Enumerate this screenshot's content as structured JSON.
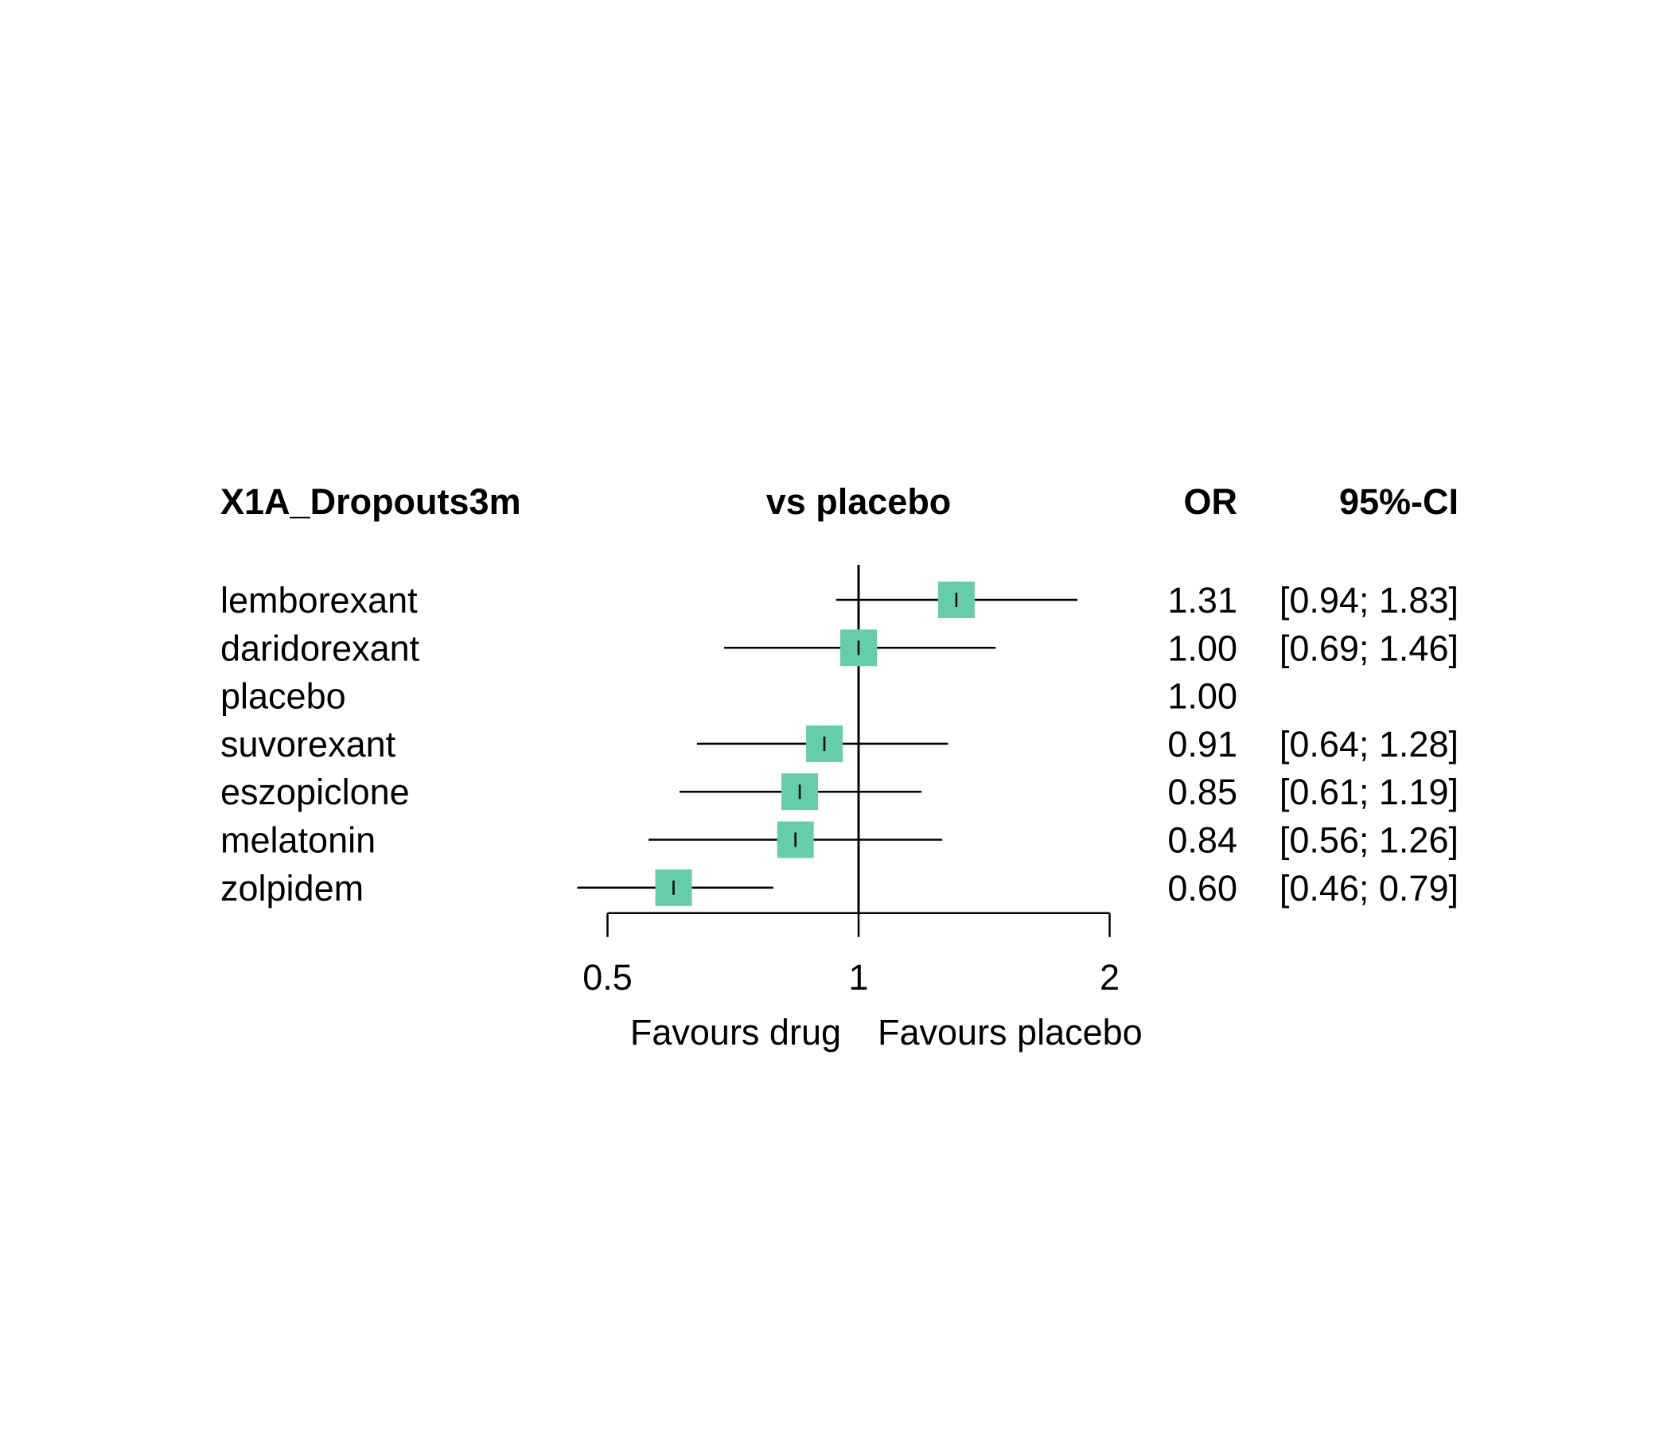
{
  "chart_data": {
    "type": "forest",
    "headers": {
      "outcome": "X1A_Dropouts3m",
      "comparison": "vs placebo",
      "effect": "OR",
      "ci": "95%-CI"
    },
    "rows": [
      {
        "label": "lemborexant",
        "or": 1.31,
        "lower": 0.94,
        "upper": 1.83,
        "or_text": "1.31",
        "ci_text": "[0.94; 1.83]"
      },
      {
        "label": "daridorexant",
        "or": 1.0,
        "lower": 0.69,
        "upper": 1.46,
        "or_text": "1.00",
        "ci_text": "[0.69; 1.46]"
      },
      {
        "label": "placebo",
        "or": 1.0,
        "lower": null,
        "upper": null,
        "or_text": "1.00",
        "ci_text": ""
      },
      {
        "label": "suvorexant",
        "or": 0.91,
        "lower": 0.64,
        "upper": 1.28,
        "or_text": "0.91",
        "ci_text": "[0.64; 1.28]"
      },
      {
        "label": "eszopiclone",
        "or": 0.85,
        "lower": 0.61,
        "upper": 1.19,
        "or_text": "0.85",
        "ci_text": "[0.61; 1.19]"
      },
      {
        "label": "melatonin",
        "or": 0.84,
        "lower": 0.56,
        "upper": 1.26,
        "or_text": "0.84",
        "ci_text": "[0.56; 1.26]"
      },
      {
        "label": "zolpidem",
        "or": 0.6,
        "lower": 0.46,
        "upper": 0.79,
        "or_text": "0.60",
        "ci_text": "[0.46; 0.79]"
      }
    ],
    "x_axis": {
      "scale": "log",
      "ticks": [
        0.5,
        1,
        2
      ],
      "tick_labels": [
        "0.5",
        "1",
        "2"
      ],
      "reference": 1
    },
    "favours_left": "Favours drug",
    "favours_right": "Favours placebo",
    "marker_color": "#66cdaa",
    "line_color": "#000000"
  }
}
